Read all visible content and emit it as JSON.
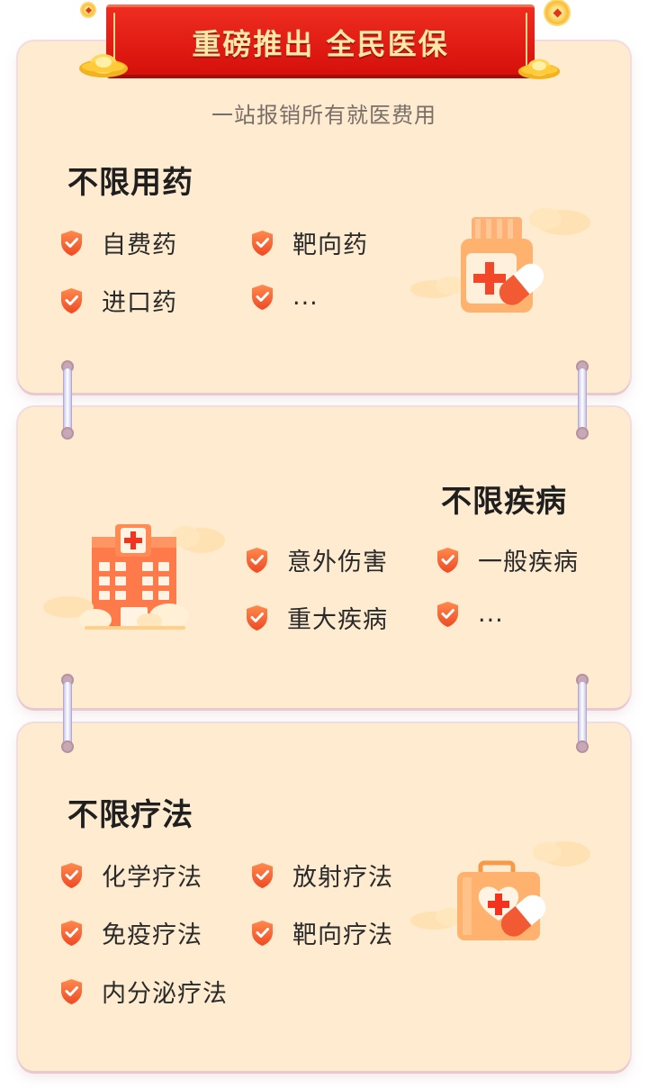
{
  "banner": {
    "title": "重磅推出 全民医保",
    "subtitle": "一站报销所有就医费用"
  },
  "sections": [
    {
      "heading": "不限用药",
      "items": [
        "自费药",
        "靶向药",
        "进口药",
        "..."
      ],
      "illustration": "medicine-bottle-icon"
    },
    {
      "heading": "不限疾病",
      "items": [
        "意外伤害",
        "一般疾病",
        "重大疾病",
        "..."
      ],
      "illustration": "hospital-icon"
    },
    {
      "heading": "不限疗法",
      "items": [
        "化学疗法",
        "放射疗法",
        "免疫疗法",
        "靶向疗法",
        "内分泌疗法"
      ],
      "illustration": "medical-kit-icon"
    }
  ],
  "colors": {
    "card_bg": "#ffebcf",
    "banner_red": "#e21a14",
    "shield_orange": "#f4602e",
    "heading_highlight": "#ffcf9c"
  }
}
